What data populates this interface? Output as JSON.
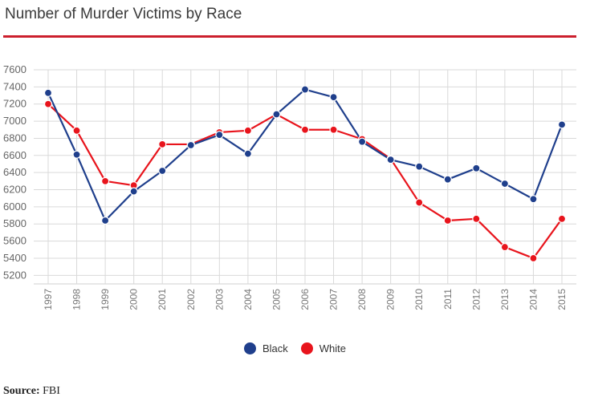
{
  "chart_data": {
    "type": "line",
    "title": "Number of Murder Victims by Race",
    "x": [
      "1997",
      "1998",
      "1999",
      "2000",
      "2001",
      "2002",
      "2003",
      "2004",
      "2005",
      "2006",
      "2007",
      "2008",
      "2009",
      "2010",
      "2011",
      "2012",
      "2013",
      "2014",
      "2015"
    ],
    "series": [
      {
        "name": "Black",
        "color": "#1f3f8c",
        "values": [
          7330,
          6610,
          5840,
          6180,
          6420,
          6720,
          6840,
          6620,
          7080,
          7370,
          7280,
          6760,
          6550,
          6470,
          6320,
          6450,
          6270,
          6090,
          6960
        ]
      },
      {
        "name": "White",
        "color": "#e8141c",
        "values": [
          7200,
          6890,
          6300,
          6250,
          6730,
          6730,
          6870,
          6890,
          7080,
          6900,
          6900,
          6790,
          6560,
          6050,
          5840,
          5860,
          5530,
          5400,
          5860
        ]
      }
    ],
    "yticks": [
      5200,
      5400,
      5600,
      5800,
      6000,
      6200,
      6400,
      6600,
      6800,
      7000,
      7200,
      7400,
      7600
    ],
    "ylim": [
      5100,
      7600
    ],
    "grid": true,
    "legend_position": "bottom-center"
  },
  "source": {
    "label": "Source:",
    "value": "FBI"
  }
}
